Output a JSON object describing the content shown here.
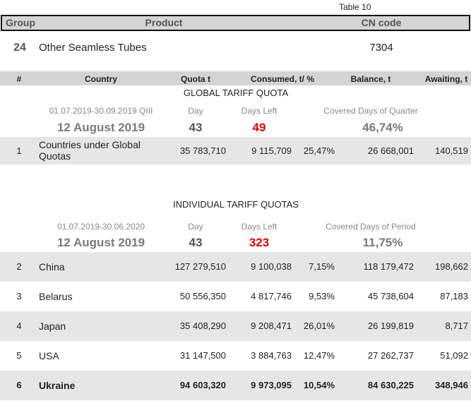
{
  "table_number": "Table 10",
  "header": {
    "group": "Group",
    "product": "Product",
    "cn_code": "CN code"
  },
  "product_row": {
    "group": "24",
    "product": "Other Seamless Tubes",
    "cn_code": "7304"
  },
  "columns": [
    "#",
    "Country",
    "Quota t",
    "Consumed, t/ %",
    "Balance, t",
    "Awaiting, t"
  ],
  "sections": [
    {
      "title": "GLOBAL TARIFF QUOTA",
      "period": "01.07.2019-30.09.2019  QIII",
      "day_label": "Day",
      "days_left_label": "Days Left",
      "covered_label": "Covered Days of Quarter",
      "date": "12 August 2019",
      "day": "43",
      "days_left": "49",
      "covered": "46,74%",
      "rows": [
        [
          "1",
          "Countries under Global Quotas",
          "35 783,710",
          "9 115,709",
          "25,47%",
          "26 668,001",
          "140,519"
        ]
      ]
    },
    {
      "title": "INDIVIDUAL TARIFF QUOTAS",
      "period": "01.07.2019-30.06.2020",
      "day_label": "Day",
      "days_left_label": "Days Left",
      "covered_label": "Covered Days of Period",
      "date": "12 August 2019",
      "day": "43",
      "days_left": "323",
      "covered": "11,75%",
      "rows": [
        [
          "2",
          "China",
          "127 279,510",
          "9 100,038",
          "7,15%",
          "118 179,472",
          "198,662"
        ],
        [
          "3",
          "Belarus",
          "50 556,350",
          "4 817,746",
          "9,53%",
          "45 738,604",
          "87,183"
        ],
        [
          "4",
          "Japan",
          "35 408,290",
          "9 208,471",
          "26,01%",
          "26 199,819",
          "8,717"
        ],
        [
          "5",
          "USA",
          "31 147,500",
          "3 884,763",
          "12,47%",
          "27 262,737",
          "51,092"
        ],
        [
          "6",
          "Ukraine",
          "94 603,320",
          "9 973,095",
          "10,54%",
          "84 630,225",
          "348,946"
        ]
      ]
    }
  ]
}
